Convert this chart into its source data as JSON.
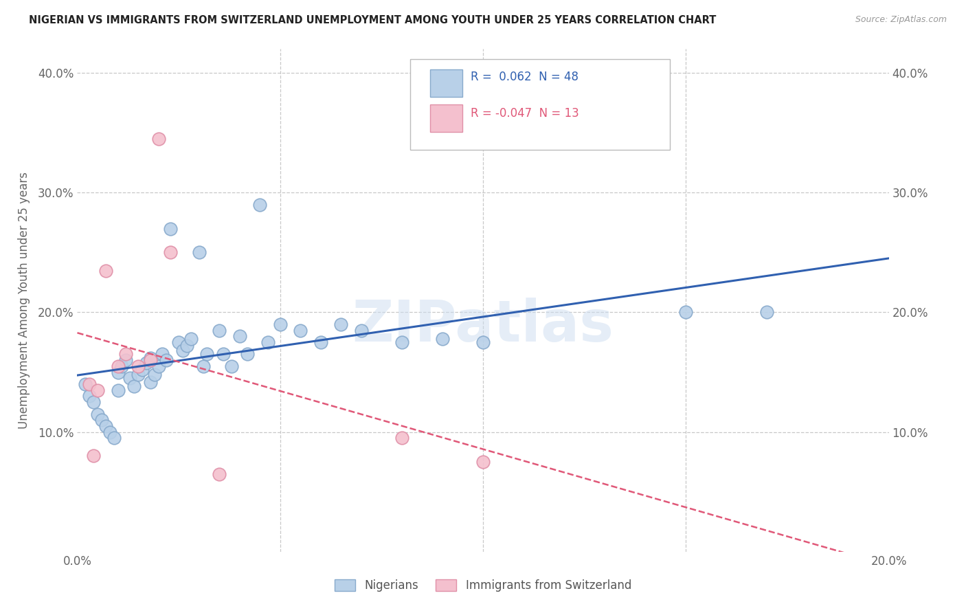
{
  "title": "NIGERIAN VS IMMIGRANTS FROM SWITZERLAND UNEMPLOYMENT AMONG YOUTH UNDER 25 YEARS CORRELATION CHART",
  "source": "Source: ZipAtlas.com",
  "ylabel_label": "Unemployment Among Youth under 25 years",
  "x_min": 0.0,
  "x_max": 0.2,
  "y_min": 0.0,
  "y_max": 0.42,
  "nigerian_R": 0.062,
  "nigerian_N": 48,
  "swiss_R": -0.047,
  "swiss_N": 13,
  "nigerian_color": "#b8d0e8",
  "nigerian_edge": "#88aacc",
  "swiss_color": "#f4c0ce",
  "swiss_edge": "#e090a8",
  "line_nigerian_color": "#3060b0",
  "line_swiss_color": "#e05878",
  "grid_color": "#c8c8c8",
  "legend_r_nigerian_color": "#3060b0",
  "legend_r_swiss_color": "#e05878",
  "nigerian_scatter_x": [
    0.002,
    0.003,
    0.004,
    0.005,
    0.006,
    0.007,
    0.008,
    0.009,
    0.01,
    0.01,
    0.011,
    0.012,
    0.013,
    0.014,
    0.015,
    0.016,
    0.017,
    0.018,
    0.018,
    0.019,
    0.02,
    0.021,
    0.022,
    0.023,
    0.025,
    0.026,
    0.027,
    0.028,
    0.03,
    0.031,
    0.032,
    0.035,
    0.036,
    0.038,
    0.04,
    0.042,
    0.045,
    0.047,
    0.05,
    0.055,
    0.06,
    0.065,
    0.07,
    0.08,
    0.09,
    0.1,
    0.15,
    0.17
  ],
  "nigerian_scatter_y": [
    0.14,
    0.13,
    0.125,
    0.115,
    0.11,
    0.105,
    0.1,
    0.095,
    0.135,
    0.15,
    0.155,
    0.16,
    0.145,
    0.138,
    0.148,
    0.152,
    0.158,
    0.162,
    0.142,
    0.148,
    0.155,
    0.165,
    0.16,
    0.27,
    0.175,
    0.168,
    0.172,
    0.178,
    0.25,
    0.155,
    0.165,
    0.185,
    0.165,
    0.155,
    0.18,
    0.165,
    0.29,
    0.175,
    0.19,
    0.185,
    0.175,
    0.19,
    0.185,
    0.175,
    0.178,
    0.175,
    0.2,
    0.2
  ],
  "swiss_scatter_x": [
    0.003,
    0.004,
    0.005,
    0.007,
    0.01,
    0.012,
    0.015,
    0.018,
    0.02,
    0.023,
    0.035,
    0.08,
    0.1
  ],
  "swiss_scatter_y": [
    0.14,
    0.08,
    0.135,
    0.235,
    0.155,
    0.165,
    0.155,
    0.16,
    0.345,
    0.25,
    0.065,
    0.095,
    0.075
  ],
  "watermark_text": "ZIPatlas",
  "figsize": [
    14.06,
    8.92
  ],
  "dpi": 100
}
